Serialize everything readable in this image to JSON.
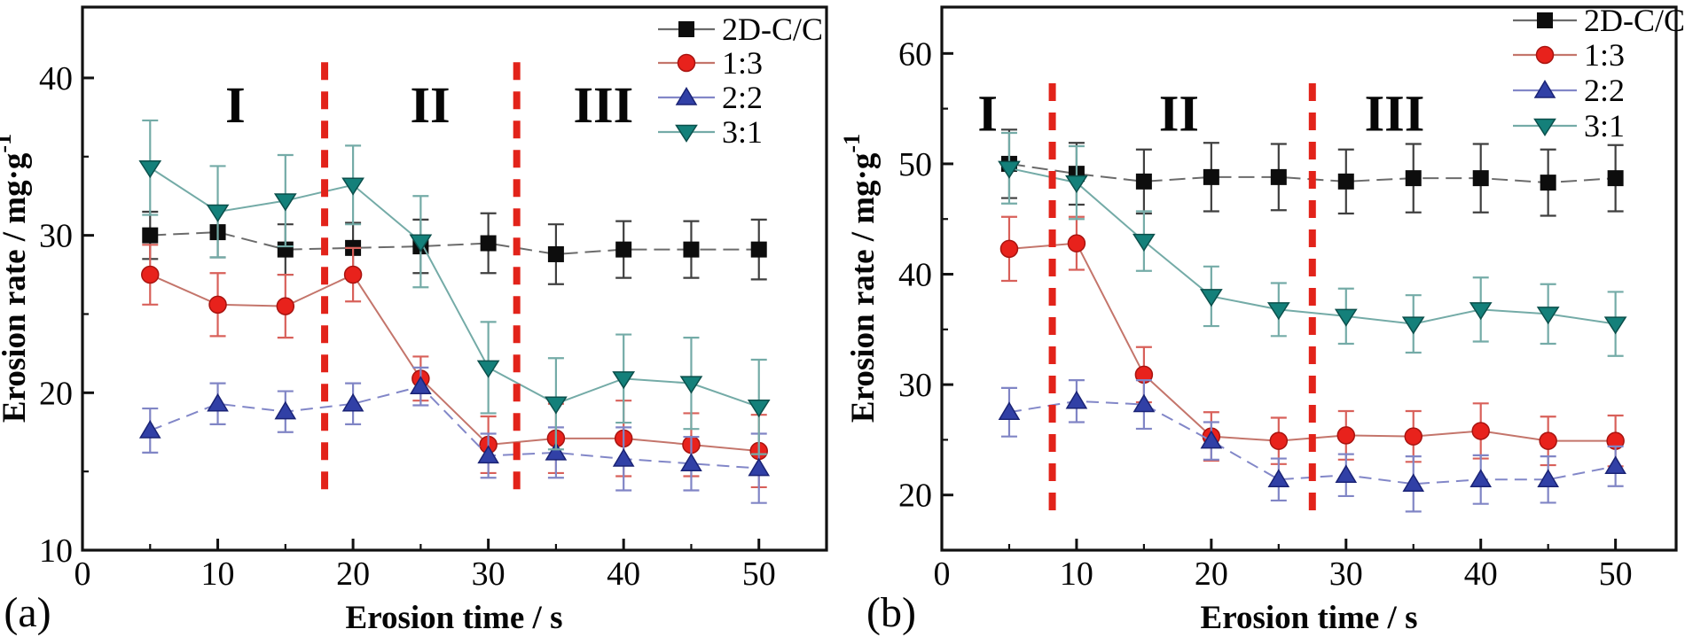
{
  "figure": {
    "background": "#ffffff",
    "frame_color": "#111111",
    "panel_labels": [
      "(a)",
      "(b)"
    ]
  },
  "chart_data": [
    {
      "type": "line",
      "panel_label": "(a)",
      "title": "",
      "xlabel": "Erosion time / s",
      "ylabel": "Erosion rate / mg·g⁻¹",
      "ylabel_base": "Erosion rate / mg·g",
      "ylabel_superscript": "-1",
      "xlim": [
        0,
        55
      ],
      "ylim": [
        10,
        44.5
      ],
      "x_major_ticks": [
        0,
        10,
        20,
        30,
        40,
        50
      ],
      "x_minor_ticks": [
        5,
        15,
        25,
        35,
        45
      ],
      "y_major_ticks": [
        10,
        20,
        30,
        40
      ],
      "y_minor_ticks": [
        15,
        25,
        35
      ],
      "grid": false,
      "legend": {
        "position": "top-right",
        "items": [
          "2D-C/C",
          "1:3",
          "2:2",
          "3:1"
        ]
      },
      "stage_dividers_x": [
        17.9,
        32.1
      ],
      "divider_color": "#e2231a",
      "divider_y_range": [
        13.2,
        41.0
      ],
      "regions": [
        {
          "label": "I",
          "x": 11.3,
          "y": 38.3
        },
        {
          "label": "II",
          "x": 25.7,
          "y": 38.3
        },
        {
          "label": "III",
          "x": 38.5,
          "y": 38.3
        }
      ],
      "x": [
        5,
        10,
        15,
        20,
        25,
        30,
        35,
        40,
        45,
        50
      ],
      "series": [
        {
          "name": "2D-C/C",
          "marker": "square",
          "marker_color": "#0d0d0d",
          "marker_edge": "#0d0d0d",
          "line_color": "#6b6b6b",
          "line_dash": "18 8",
          "error_color": "#3f3f3f",
          "values": [
            30.0,
            30.2,
            29.1,
            29.2,
            29.3,
            29.5,
            28.8,
            29.1,
            29.1,
            29.1
          ],
          "errors": [
            1.5,
            1.6,
            1.6,
            1.6,
            1.7,
            1.9,
            1.9,
            1.8,
            1.8,
            1.9
          ]
        },
        {
          "name": "1:3",
          "marker": "circle",
          "marker_color": "#e8221c",
          "marker_edge": "#a81410",
          "line_color": "#c4756b",
          "line_dash": "",
          "error_color": "#d8605a",
          "values": [
            27.5,
            25.6,
            25.5,
            27.5,
            20.9,
            16.7,
            17.1,
            17.1,
            16.7,
            16.3
          ],
          "errors": [
            1.9,
            2.0,
            2.0,
            1.7,
            1.4,
            1.8,
            2.2,
            2.4,
            2.0,
            2.3
          ]
        },
        {
          "name": "2:2",
          "marker": "triangle-up",
          "marker_color": "#3140a6",
          "marker_edge": "#1a2375",
          "line_color": "#8287c8",
          "line_dash": "14 8",
          "error_color": "#8085c5",
          "values": [
            17.6,
            19.3,
            18.8,
            19.3,
            20.4,
            16.0,
            16.2,
            15.8,
            15.5,
            15.2
          ],
          "errors": [
            1.4,
            1.3,
            1.3,
            1.3,
            1.2,
            1.4,
            1.6,
            2.0,
            1.7,
            2.2
          ]
        },
        {
          "name": "3:1",
          "marker": "triangle-down",
          "marker_color": "#14807a",
          "marker_edge": "#0b4f4b",
          "line_color": "#74aba7",
          "line_dash": "",
          "error_color": "#74aba7",
          "values": [
            34.3,
            31.5,
            32.2,
            33.2,
            29.6,
            21.6,
            19.3,
            20.9,
            20.6,
            19.1
          ],
          "errors": [
            3.0,
            2.9,
            2.9,
            2.5,
            2.9,
            2.9,
            2.9,
            2.8,
            2.9,
            3.0
          ]
        }
      ]
    },
    {
      "type": "line",
      "panel_label": "(b)",
      "title": "",
      "xlabel": "Erosion time / s",
      "ylabel": "Erosion rate / mg·g⁻¹",
      "ylabel_base": "Erosion rate / mg·g",
      "ylabel_superscript": "-1",
      "xlim": [
        0,
        54.5
      ],
      "ylim": [
        15,
        64.2
      ],
      "x_major_ticks": [
        0,
        10,
        20,
        30,
        40,
        50
      ],
      "x_minor_ticks": [
        5,
        15,
        25,
        35,
        45
      ],
      "y_major_ticks": [
        20,
        30,
        40,
        50,
        60
      ],
      "y_minor_ticks": [
        25,
        35,
        45,
        55
      ],
      "grid": false,
      "legend": {
        "position": "top-right",
        "items": [
          "2D-C/C",
          "1:3",
          "2:2",
          "3:1"
        ]
      },
      "stage_dividers_x": [
        8.2,
        27.5
      ],
      "divider_color": "#e2231a",
      "divider_y_range": [
        18.5,
        57.3
      ],
      "regions": [
        {
          "label": "I",
          "x": 3.4,
          "y": 54.6
        },
        {
          "label": "II",
          "x": 17.6,
          "y": 54.6
        },
        {
          "label": "III",
          "x": 33.6,
          "y": 54.6
        }
      ],
      "x": [
        5,
        10,
        15,
        20,
        25,
        30,
        35,
        40,
        45,
        50
      ],
      "series": [
        {
          "name": "2D-C/C",
          "marker": "square",
          "marker_color": "#0d0d0d",
          "marker_edge": "#0d0d0d",
          "line_color": "#6b6b6b",
          "line_dash": "18 8",
          "error_color": "#3f3f3f",
          "values": [
            50.0,
            49.1,
            48.4,
            48.8,
            48.8,
            48.4,
            48.7,
            48.7,
            48.3,
            48.7
          ],
          "errors": [
            3.1,
            2.8,
            2.9,
            3.1,
            3.0,
            2.9,
            3.1,
            3.1,
            3.0,
            3.0
          ]
        },
        {
          "name": "1:3",
          "marker": "circle",
          "marker_color": "#e8221c",
          "marker_edge": "#a81410",
          "line_color": "#c4756b",
          "line_dash": "",
          "error_color": "#d8605a",
          "values": [
            42.3,
            42.8,
            30.9,
            25.3,
            24.9,
            25.4,
            25.3,
            25.8,
            24.9,
            24.9
          ],
          "errors": [
            2.9,
            2.4,
            2.5,
            2.2,
            2.1,
            2.2,
            2.3,
            2.5,
            2.2,
            2.3
          ]
        },
        {
          "name": "2:2",
          "marker": "triangle-up",
          "marker_color": "#3140a6",
          "marker_edge": "#1a2375",
          "line_color": "#8287c8",
          "line_dash": "14 8",
          "error_color": "#8085c5",
          "values": [
            27.5,
            28.5,
            28.2,
            24.9,
            21.4,
            21.8,
            21.0,
            21.4,
            21.4,
            22.6
          ],
          "errors": [
            2.2,
            1.9,
            2.2,
            1.7,
            1.9,
            1.9,
            2.5,
            2.2,
            2.1,
            1.8
          ]
        },
        {
          "name": "3:1",
          "marker": "triangle-down",
          "marker_color": "#14807a",
          "marker_edge": "#0b4f4b",
          "line_color": "#74aba7",
          "line_dash": "",
          "error_color": "#74aba7",
          "values": [
            49.6,
            48.3,
            43.0,
            38.0,
            36.8,
            36.2,
            35.5,
            36.8,
            36.4,
            35.5
          ],
          "errors": [
            3.2,
            3.3,
            2.7,
            2.7,
            2.4,
            2.5,
            2.6,
            2.9,
            2.7,
            2.9
          ]
        }
      ]
    }
  ]
}
